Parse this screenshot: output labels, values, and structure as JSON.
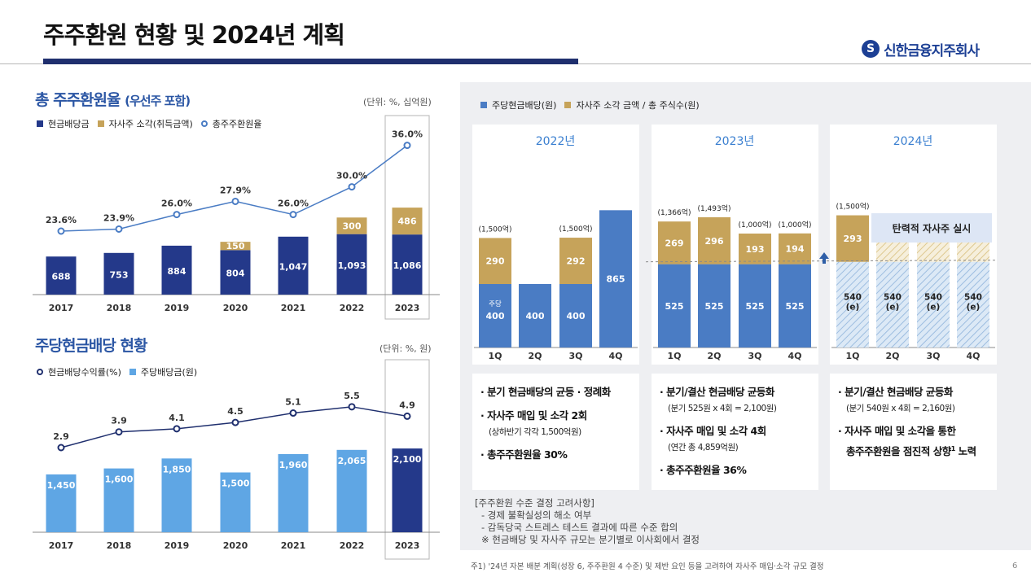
{
  "header": {
    "title": "주주환원 현황 및 2024년 계획",
    "logo_text": "신한금융지주회사",
    "logo_mark": "S",
    "navy_color": "#1f2f6e"
  },
  "total_return": {
    "title_main": "총 주주환원율 ",
    "title_sub": "(우선주 포함)",
    "unit": "(단위: %, 십억원)",
    "legend": [
      "현금배당금",
      "자사주 소각(취득금액)",
      "총주주환원율"
    ]
  },
  "dps": {
    "title": "주당현금배당 현황",
    "unit": "(단위: %, 원)",
    "legend": [
      "현금배당수익률(%)",
      "주당배당금(원)"
    ]
  },
  "right": {
    "legend": [
      "주당현금배당(원)",
      "자사주 소각 금액 / 총 주식수(원)"
    ],
    "years": [
      "2022년",
      "2023년",
      "2024년"
    ],
    "quarters": [
      "1Q",
      "2Q",
      "3Q",
      "4Q"
    ],
    "label_jusang": "주당",
    "flex_label": "탄력적 자사주 실시",
    "box_2022": {
      "b1": "· 분기 현금배당의 균등 · 정례화",
      "b2": "· 자사주 매입 및 소각 2회",
      "s2": "(상하반기 각각 1,500억원)",
      "b3": "· 총주주환원율 30%"
    },
    "box_2023": {
      "b1": "· 분기/결산 현금배당 균등화",
      "s1": "(분기 525원 x 4회 = 2,100원)",
      "b2": "· 자사주 매입 및 소각 4회",
      "s2": "(연간 총 4,859억원)",
      "b3": "· 총주주환원율 36%"
    },
    "box_2024": {
      "b1": "· 분기/결산 현금배당 균등화",
      "s1": "(분기 540원 x 4회 = 2,160원)",
      "b2": "· 자사주 매입 및 소각을 통한",
      "b2b": "총주주환원을 점진적 상향",
      "b2sup": "1",
      "b2c": " 노력"
    },
    "considerations": [
      "[주주환원 수준 결정 고려사항]",
      "- 경제 불확실성의 해소 여부",
      "- 감독당국 스트레스 테스트 결과에 따른 수준 합의",
      "※ 현금배당 및 자사주 규모는 분기별로 이사회에서 결정"
    ]
  },
  "footnote": "주1) '24년 자본 배분 계획(성장 6, 주주환원 4 수준) 및 제반 요인 등을 고려하여 자사주 매입·소각 규모 결정",
  "page_number": "6",
  "colors": {
    "navy": "#24398a",
    "gold": "#c6a35a",
    "light_blue": "#5fa6e4",
    "mid_blue": "#4a7cc4",
    "panel_gray": "#eeeff2"
  },
  "chart_data": [
    {
      "type": "bar",
      "title": "총 주주환원율 (우선주 포함)",
      "categories": [
        "2017",
        "2018",
        "2019",
        "2020",
        "2021",
        "2022",
        "2023"
      ],
      "series": [
        {
          "name": "현금배당금",
          "values": [
            688,
            753,
            884,
            804,
            1047,
            1093,
            1086
          ]
        },
        {
          "name": "자사주 소각(취득금액)",
          "values": [
            null,
            null,
            null,
            150,
            null,
            300,
            486
          ]
        },
        {
          "name": "총주주환원율",
          "type": "line",
          "values": [
            23.6,
            23.9,
            26.0,
            27.9,
            26.0,
            30.0,
            36.0
          ],
          "labels": [
            "23.6%",
            "23.9%",
            "26.0%",
            "27.9%",
            "26.0%",
            "30.0%",
            "36.0%"
          ]
        }
      ],
      "value_labels": [
        "688",
        "753",
        "884",
        "804",
        "1,047",
        "1,093",
        "1,086"
      ],
      "buyback_labels": [
        "",
        "",
        "",
        "150",
        "",
        "300",
        "486"
      ],
      "highlight": "2023"
    },
    {
      "type": "bar",
      "title": "주당현금배당 현황",
      "categories": [
        "2017",
        "2018",
        "2019",
        "2020",
        "2021",
        "2022",
        "2023"
      ],
      "series": [
        {
          "name": "주당배당금(원)",
          "values": [
            1450,
            1600,
            1850,
            1500,
            1960,
            2065,
            2100
          ],
          "labels": [
            "1,450",
            "1,600",
            "1,850",
            "1,500",
            "1,960",
            "2,065",
            "2,100"
          ]
        },
        {
          "name": "현금배당수익률(%)",
          "type": "line",
          "values": [
            2.9,
            3.9,
            4.1,
            4.5,
            5.1,
            5.5,
            4.9
          ],
          "labels": [
            "2.9",
            "3.9",
            "4.1",
            "4.5",
            "5.1",
            "5.5",
            "4.9"
          ]
        }
      ],
      "highlight": "2023"
    },
    {
      "type": "bar",
      "title": "분기별 주당현금배당 및 자사주 소각",
      "groups": [
        {
          "year": "2022년",
          "dividend": [
            400,
            400,
            400,
            865
          ],
          "dividend_labels": [
            "400",
            "400",
            "400",
            "865"
          ],
          "buyback_per_share": [
            290,
            null,
            292,
            null
          ],
          "buyback_labels": [
            "290",
            "",
            "292",
            ""
          ],
          "buyback_total": [
            "(1,500억)",
            "",
            "(1,500억)",
            ""
          ]
        },
        {
          "year": "2023년",
          "dividend": [
            525,
            525,
            525,
            525
          ],
          "dividend_labels": [
            "525",
            "525",
            "525",
            "525"
          ],
          "buyback_per_share": [
            269,
            296,
            193,
            194
          ],
          "buyback_labels": [
            "269",
            "296",
            "193",
            "194"
          ],
          "buyback_total": [
            "(1,366억)",
            "(1,493억)",
            "(1,000억)",
            "(1,000억)"
          ]
        },
        {
          "year": "2024년",
          "dividend": [
            540,
            540,
            540,
            540
          ],
          "dividend_labels": [
            "540\n(e)",
            "540\n(e)",
            "540\n(e)",
            "540\n(e)"
          ],
          "buyback_per_share": [
            293,
            null,
            null,
            null
          ],
          "buyback_labels": [
            "293",
            "",
            "",
            ""
          ],
          "buyback_total": [
            "(1,500억)",
            "",
            "",
            ""
          ]
        }
      ]
    }
  ]
}
